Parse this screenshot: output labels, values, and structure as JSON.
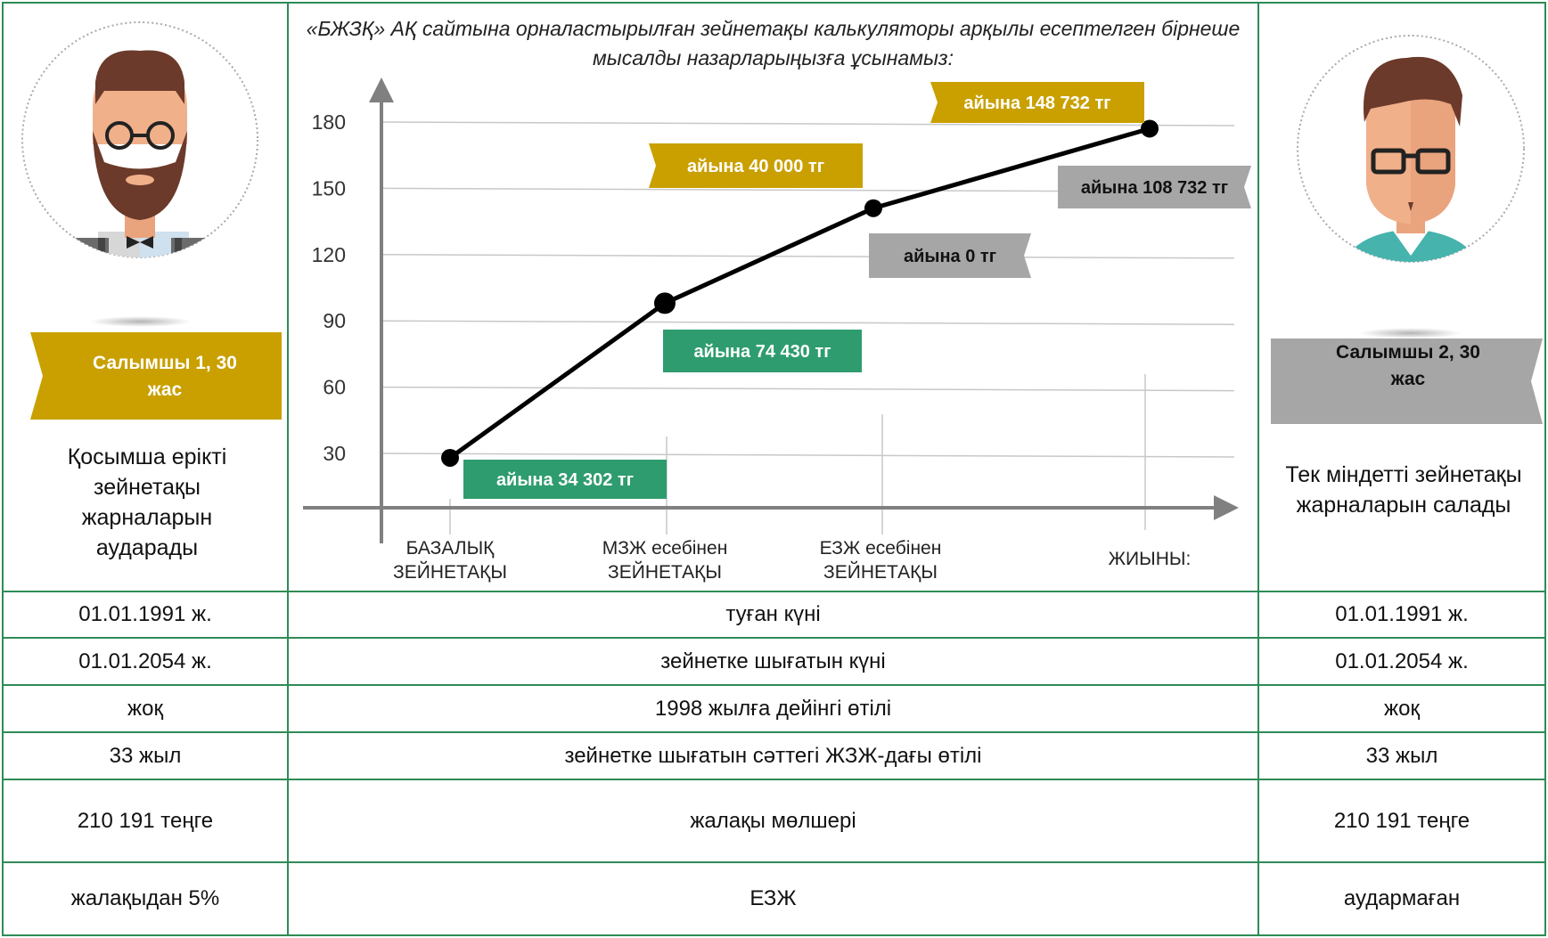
{
  "chart_title": "«БЖЗҚ» АҚ сайтына орналастырылған зейнетақы калькуляторы арқылы есептелген бірнеше мысалды назарларыңызға ұсынамыз:",
  "left_person": {
    "label": "Салымшы 1, 30 жас",
    "description": "Қосымша ерікті зейнетақы жарналарын аударады"
  },
  "right_person": {
    "label": "Салымшы 2, 30 жас",
    "description": "Тек міндетті зейнетақы жарналарын салады"
  },
  "table": {
    "rows": [
      {
        "left": "01.01.1991 ж.",
        "middle": "туған күні",
        "right": "01.01.1991 ж."
      },
      {
        "left": "01.01.2054 ж.",
        "middle": "зейнетке шығатын күні",
        "right": "01.01.2054 ж."
      },
      {
        "left": "жоқ",
        "middle": "1998 жылға дейінгі өтілі",
        "right": "жоқ"
      },
      {
        "left": "33 жыл",
        "middle": "зейнетке шығатын сәттегі ЖЗЖ-дағы өтілі",
        "right": "33 жыл"
      },
      {
        "left": "210 191 теңге",
        "middle": "жалақы мөлшері",
        "right": "210 191 теңге"
      },
      {
        "left": "жалақыдан 5%",
        "middle": "ЕЗЖ",
        "right": "аудармаған"
      }
    ]
  },
  "colors": {
    "green": "#2e9c6e",
    "gold": "#c9a000",
    "gray": "#a6a6a6",
    "border": "#2e8b57"
  },
  "chart_data": {
    "type": "line",
    "categories": [
      "БАЗАЛЫҚ ЗЕЙНЕТАҚЫ",
      "МЗЖ есебінен ЗЕЙНЕТАҚЫ",
      "ЕЗЖ есебінен ЗЕЙНЕТАҚЫ",
      "ЖИЫНЫ:"
    ],
    "values": [
      28,
      98,
      141,
      177
    ],
    "yticks": [
      30,
      60,
      90,
      120,
      150,
      180
    ],
    "ylim": [
      0,
      200
    ],
    "grid": true,
    "xlabel": "",
    "ylabel": "",
    "annotations": [
      {
        "text": "айына 34 302 тг",
        "category_index": 0,
        "color": "green"
      },
      {
        "text": "айына 74 430 тг",
        "category_index": 1,
        "color": "green"
      },
      {
        "text": "айына 40 000 тг",
        "category_index": 2,
        "color": "gold"
      },
      {
        "text": "айына 0 тг",
        "category_index": 2,
        "color": "gray"
      },
      {
        "text": "айына 148 732 тг",
        "category_index": 3,
        "color": "gold"
      },
      {
        "text": "айына 108 732 тг",
        "category_index": 3,
        "color": "gray"
      }
    ]
  }
}
